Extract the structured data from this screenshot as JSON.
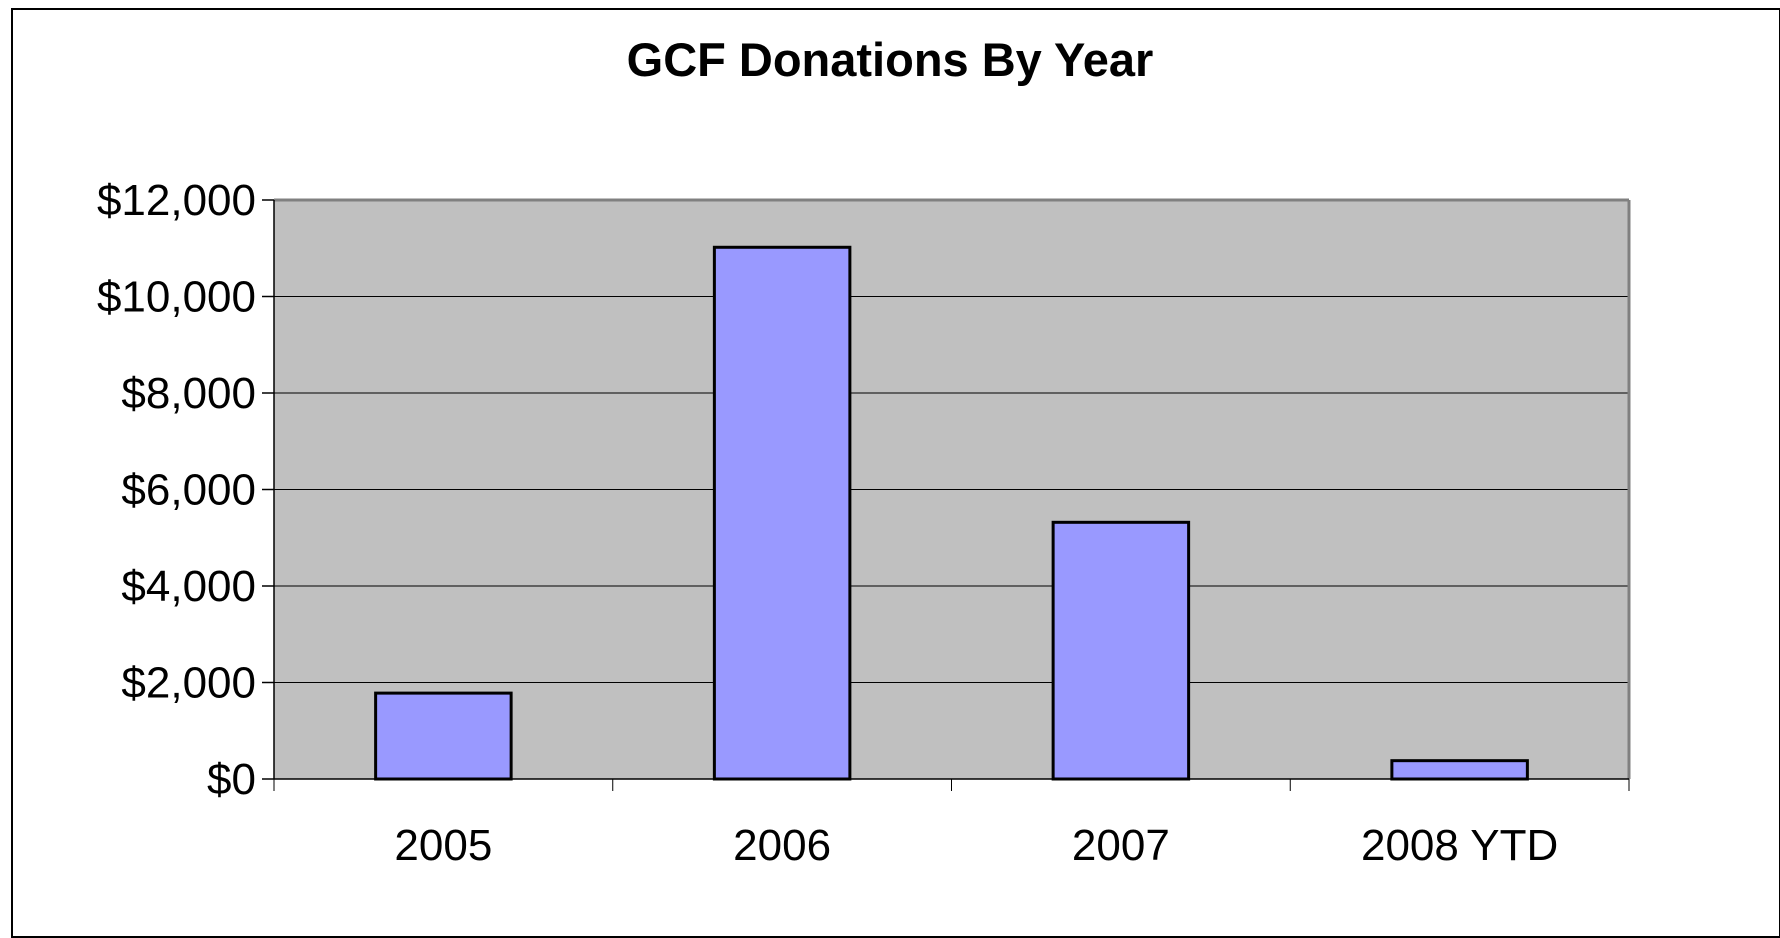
{
  "chart_data": {
    "type": "bar",
    "title": "GCF Donations By Year",
    "xlabel": "",
    "ylabel": "",
    "categories": [
      "2005",
      "2006",
      "2007",
      "2008 YTD"
    ],
    "values": [
      1780,
      11020,
      5320,
      380
    ],
    "ylim": [
      0,
      12000
    ],
    "yticks": [
      0,
      2000,
      4000,
      6000,
      8000,
      10000,
      12000
    ],
    "ytick_labels": [
      "$0",
      "$2,000",
      "$4,000",
      "$6,000",
      "$8,000",
      "$10,000",
      "$12,000"
    ],
    "grid": true,
    "legend": "none",
    "colors": {
      "bar_fill": "#9999ff",
      "bar_stroke": "#000000",
      "plot_background": "#c0c0c0",
      "gridline": "#000000",
      "plot_border": "#808080"
    }
  }
}
